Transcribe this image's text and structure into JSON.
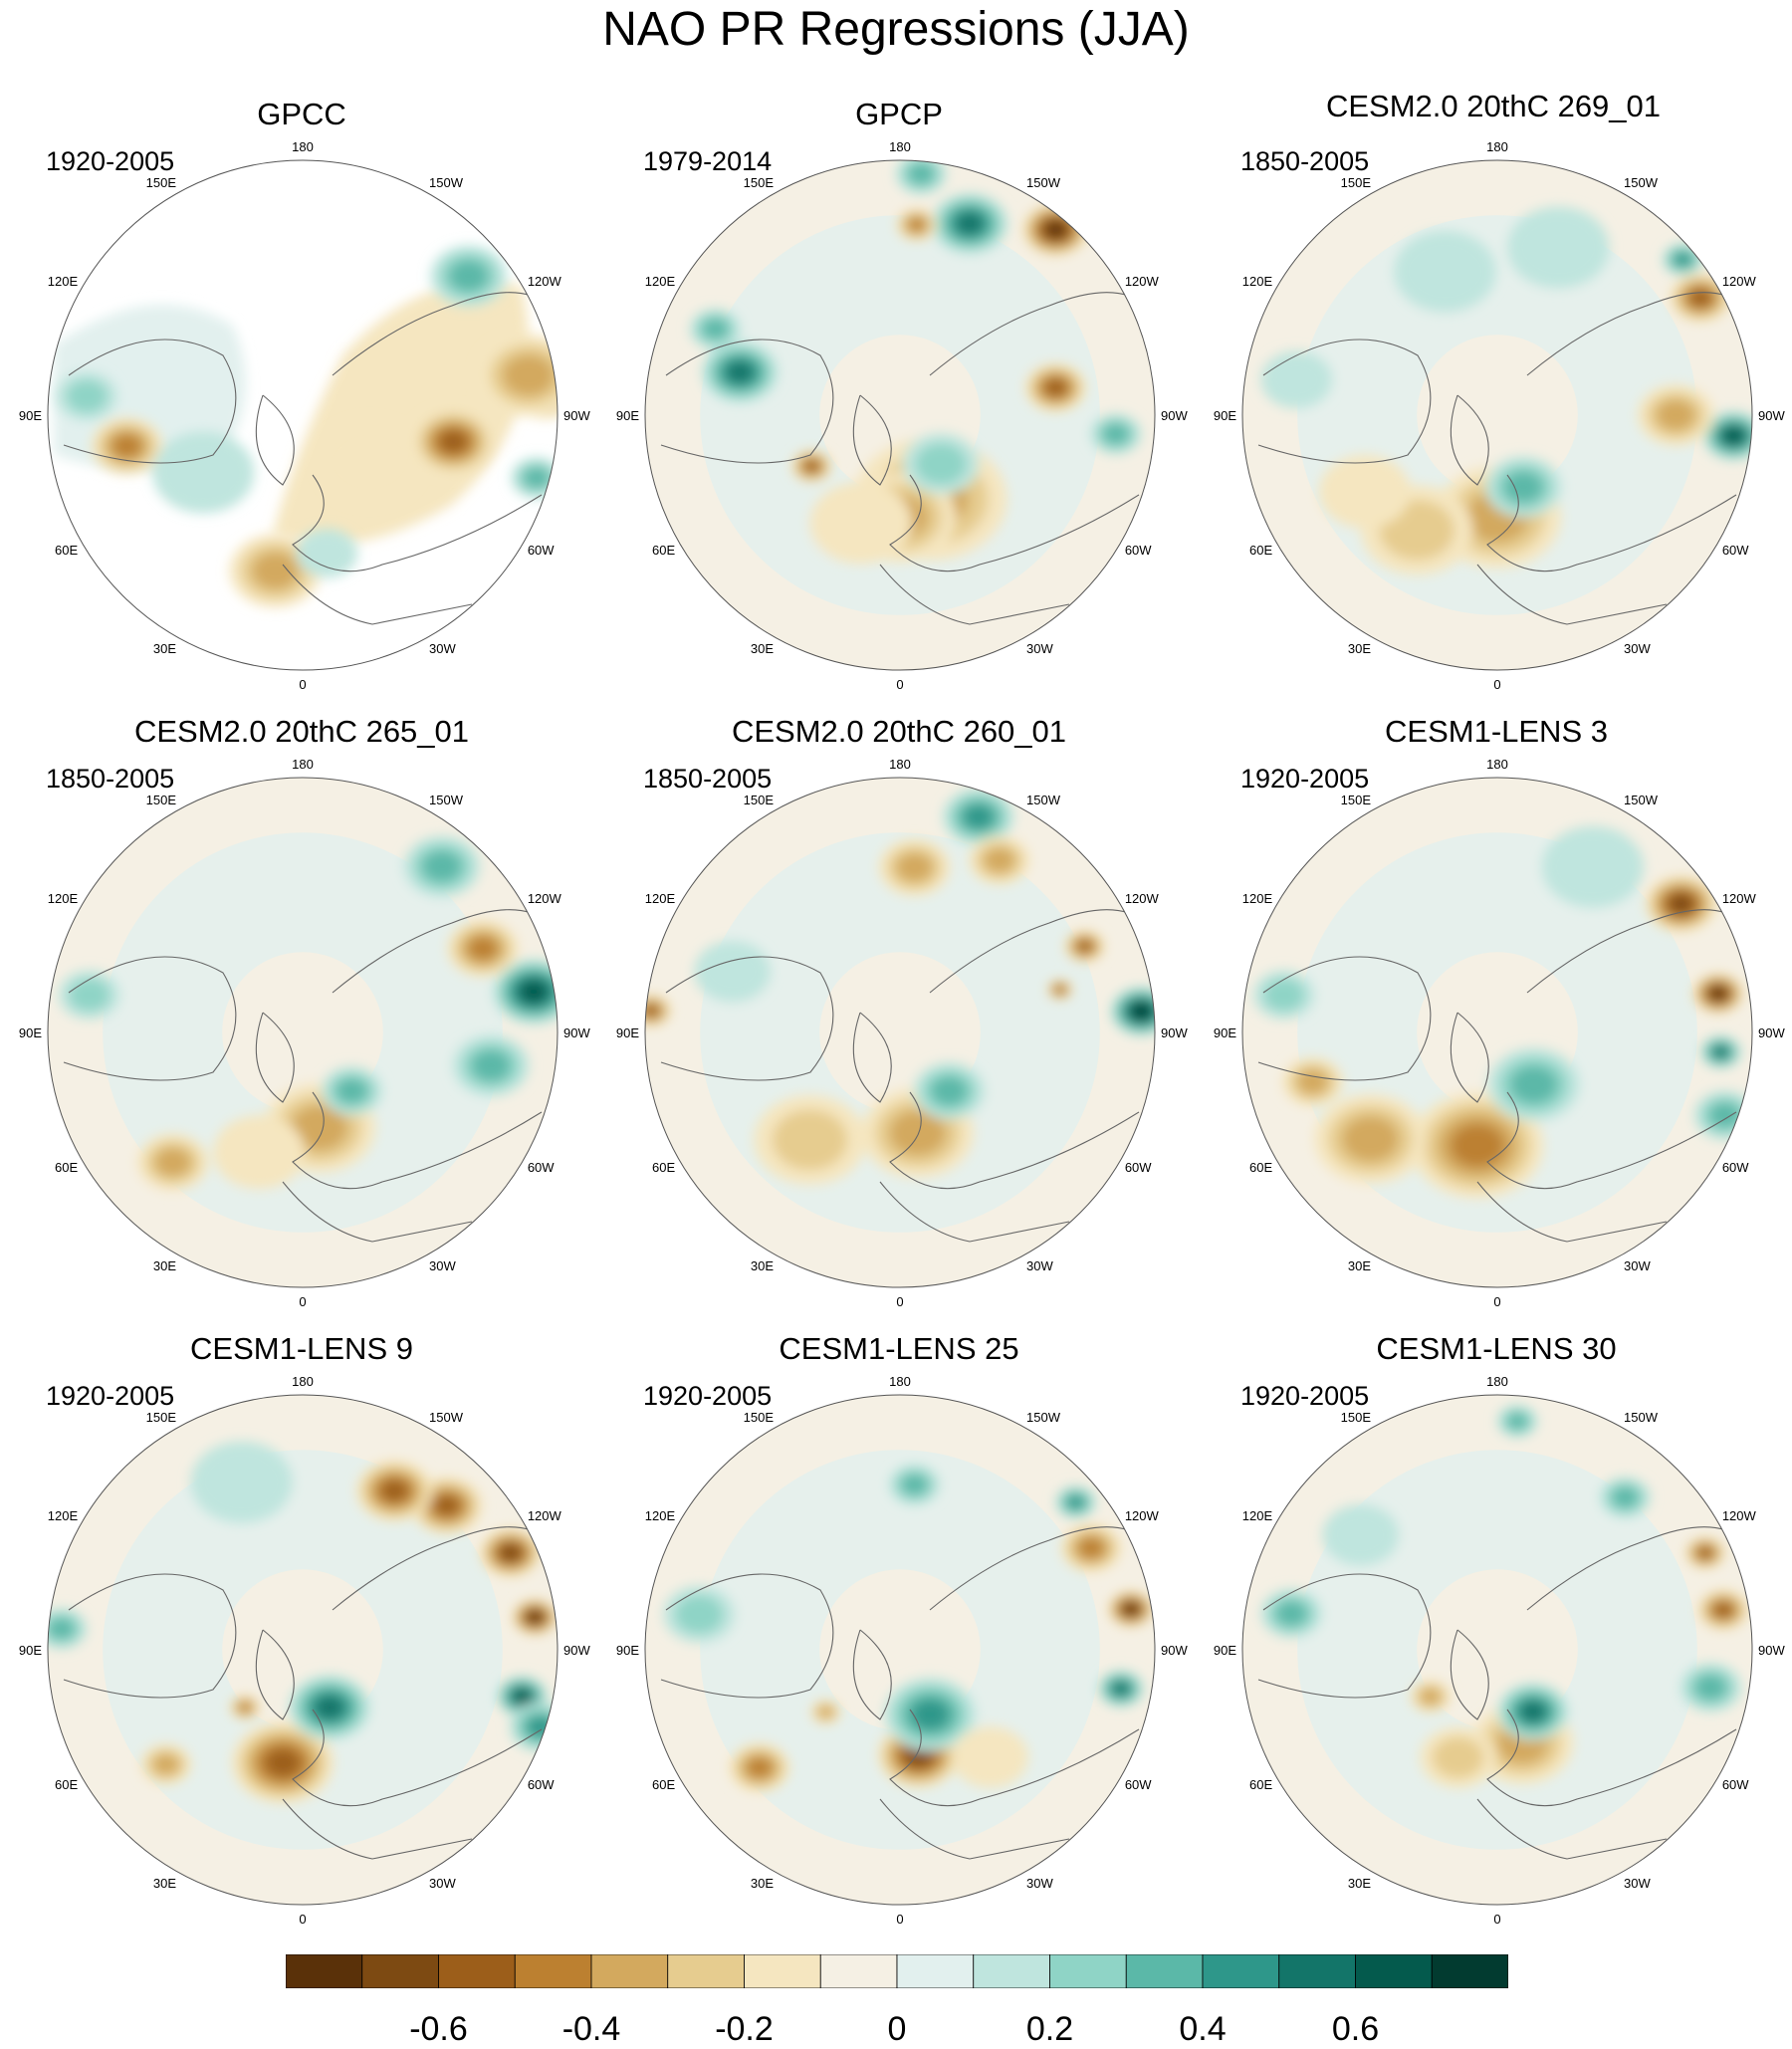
{
  "title": "NAO PR Regressions (JJA)",
  "lon_labels": [
    "180",
    "150E",
    "120E",
    "90E",
    "60E",
    "30E",
    "0",
    "30W",
    "60W",
    "90W",
    "120W",
    "150W"
  ],
  "chart_data": {
    "type": "heatmap",
    "title": "NAO PR Regressions (JJA)",
    "projection": "north polar stereographic",
    "panels": [
      {
        "name": "GPCC",
        "period": "1920-2005",
        "land_only": true
      },
      {
        "name": "GPCP",
        "period": "1979-2014",
        "land_only": false
      },
      {
        "name": "CESM2.0 20thC 269_01",
        "period": "1850-2005",
        "land_only": false
      },
      {
        "name": "CESM2.0 20thC 265_01",
        "period": "1850-2005",
        "land_only": false
      },
      {
        "name": "CESM2.0 20thC 260_01",
        "period": "1850-2005",
        "land_only": false
      },
      {
        "name": "CESM1-LENS 3",
        "period": "1920-2005",
        "land_only": false
      },
      {
        "name": "CESM1-LENS 9",
        "period": "1920-2005",
        "land_only": false
      },
      {
        "name": "CESM1-LENS 25",
        "period": "1920-2005",
        "land_only": false
      },
      {
        "name": "CESM1-LENS 30",
        "period": "1920-2005",
        "land_only": false
      }
    ],
    "colorbar": {
      "levels": [
        -0.7,
        -0.6,
        -0.5,
        -0.4,
        -0.3,
        -0.2,
        -0.1,
        0,
        0.1,
        0.2,
        0.3,
        0.4,
        0.5,
        0.6,
        0.7
      ],
      "colors": [
        "#5a3109",
        "#7d4a12",
        "#9c5e1a",
        "#bc8030",
        "#d3a95e",
        "#e6cc8f",
        "#f5e6c0",
        "#f5f0e4",
        "#e2f0ee",
        "#bfe5de",
        "#8fd4c6",
        "#5bb8a8",
        "#2e978a",
        "#137569",
        "#045a4d",
        "#023b30"
      ],
      "tick_labels": [
        "-0.6",
        "-0.4",
        "-0.2",
        "0",
        "0.2",
        "0.4",
        "0.6"
      ],
      "tick_values": [
        -0.6,
        -0.4,
        -0.2,
        0,
        0.2,
        0.4,
        0.6
      ]
    }
  }
}
